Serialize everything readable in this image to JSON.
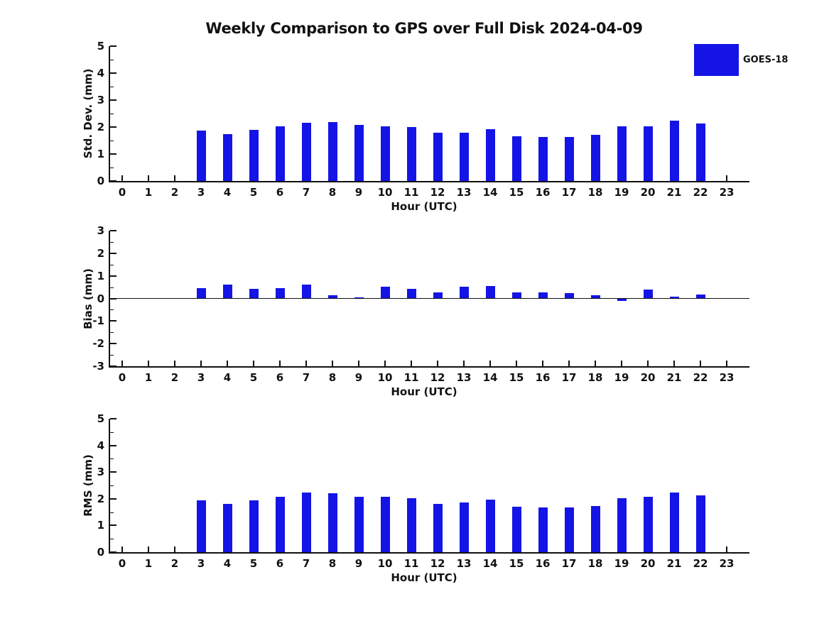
{
  "title": "Weekly Comparison to GPS over Full Disk 2024-04-09",
  "legend": {
    "label": "GOES-18"
  },
  "colors": {
    "bar": "#1414e6",
    "axis": "#111111",
    "background": "#ffffff"
  },
  "chart_data": [
    {
      "type": "bar",
      "name": "std-dev",
      "ylabel": "Std. Dev. (mm)",
      "xlabel": "Hour (UTC)",
      "ylim": [
        0,
        5
      ],
      "yticks": [
        0,
        1,
        2,
        3,
        4,
        5
      ],
      "xticks": [
        0,
        1,
        2,
        3,
        4,
        5,
        6,
        7,
        8,
        9,
        10,
        11,
        12,
        13,
        14,
        15,
        16,
        17,
        18,
        19,
        20,
        21,
        22,
        23
      ],
      "x": [
        3,
        4,
        5,
        6,
        7,
        8,
        9,
        10,
        11,
        12,
        13,
        14,
        15,
        16,
        17,
        18,
        19,
        20,
        21,
        22
      ],
      "series": [
        {
          "name": "GOES-18",
          "values": [
            1.88,
            1.75,
            1.9,
            2.03,
            2.16,
            2.19,
            2.08,
            2.03,
            2.0,
            1.78,
            1.8,
            1.91,
            1.67,
            1.64,
            1.64,
            1.72,
            2.02,
            2.03,
            2.24,
            2.13
          ]
        }
      ],
      "grid": false,
      "zero_line": false
    },
    {
      "type": "bar",
      "name": "bias",
      "ylabel": "Bias (mm)",
      "xlabel": "Hour (UTC)",
      "ylim": [
        -3,
        3
      ],
      "yticks": [
        -3,
        -2,
        -1,
        0,
        1,
        2,
        3
      ],
      "xticks": [
        0,
        1,
        2,
        3,
        4,
        5,
        6,
        7,
        8,
        9,
        10,
        11,
        12,
        13,
        14,
        15,
        16,
        17,
        18,
        19,
        20,
        21,
        22,
        23
      ],
      "x": [
        3,
        4,
        5,
        6,
        7,
        8,
        9,
        10,
        11,
        12,
        13,
        14,
        15,
        16,
        17,
        18,
        19,
        20,
        21,
        22
      ],
      "series": [
        {
          "name": "GOES-18",
          "values": [
            0.46,
            0.6,
            0.43,
            0.47,
            0.6,
            0.14,
            0.05,
            0.53,
            0.43,
            0.28,
            0.53,
            0.56,
            0.28,
            0.28,
            0.25,
            0.15,
            -0.1,
            0.4,
            0.08,
            0.17
          ]
        }
      ],
      "grid": false,
      "zero_line": true
    },
    {
      "type": "bar",
      "name": "rms",
      "ylabel": "RMS (mm)",
      "xlabel": "Hour (UTC)",
      "ylim": [
        0,
        5
      ],
      "yticks": [
        0,
        1,
        2,
        3,
        4,
        5
      ],
      "xticks": [
        0,
        1,
        2,
        3,
        4,
        5,
        6,
        7,
        8,
        9,
        10,
        11,
        12,
        13,
        14,
        15,
        16,
        17,
        18,
        19,
        20,
        21,
        22,
        23
      ],
      "x": [
        3,
        4,
        5,
        6,
        7,
        8,
        9,
        10,
        11,
        12,
        13,
        14,
        15,
        16,
        17,
        18,
        19,
        20,
        21,
        22
      ],
      "series": [
        {
          "name": "GOES-18",
          "values": [
            1.93,
            1.82,
            1.95,
            2.08,
            2.24,
            2.2,
            2.08,
            2.08,
            2.03,
            1.8,
            1.87,
            1.96,
            1.7,
            1.67,
            1.67,
            1.72,
            2.03,
            2.08,
            2.24,
            2.13
          ]
        }
      ],
      "grid": false,
      "zero_line": false
    }
  ]
}
